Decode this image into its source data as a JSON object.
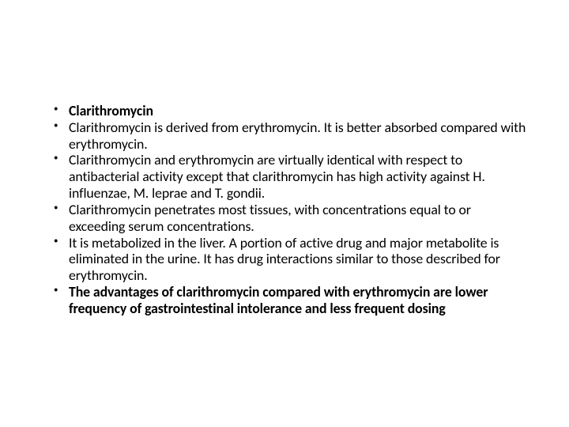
{
  "slide": {
    "background_color": "#ffffff",
    "text_color": "#000000",
    "font_family": "Calibri",
    "font_size_pt": 13,
    "line_height": 1.17,
    "bullets": [
      {
        "text": "Clarithromycin",
        "bold": true
      },
      {
        "text": "Clarithromycin is derived from erythromycin. It is better absorbed compared with erythromycin.",
        "bold": false
      },
      {
        "text": "Clarithromycin and erythromycin are virtually identical with respect to antibacterial activity except that clarithromycin has high activity against H. influenzae, M. leprae and T. gondii.",
        "bold": false
      },
      {
        "text": "Clarithromycin penetrates most tissues, with concentrations equal to or exceeding serum concentrations.",
        "bold": false
      },
      {
        "text": "It is metabolized in the liver. A portion of active drug and major metabolite is eliminated in the urine. It has drug interactions similar to those described for erythromycin.",
        "bold": false
      },
      {
        "text": "The advantages of clarithromycin compared with erythromycin are lower frequency of gastrointestinal intolerance and less frequent dosing",
        "bold": true
      }
    ]
  }
}
